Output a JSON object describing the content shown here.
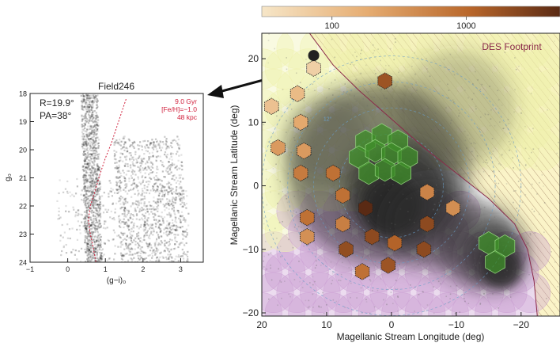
{
  "chart_data": [
    {
      "type": "scatter",
      "title": "Field246",
      "xlabel": "(g−i)₀",
      "ylabel": "g₀",
      "xlim": [
        -1,
        3.6
      ],
      "ylim": [
        24,
        18
      ],
      "x_ticks": [
        "−1",
        "0",
        "1",
        "2",
        "3"
      ],
      "x_tick_values": [
        -1,
        0,
        1,
        2,
        3
      ],
      "y_ticks": [
        "18",
        "19",
        "20",
        "21",
        "22",
        "23",
        "24"
      ],
      "y_tick_values": [
        18,
        19,
        20,
        21,
        22,
        23,
        24
      ],
      "annotations_left": [
        "R=19.9°",
        "PA=38°"
      ],
      "isochrone_labels": [
        "9.0 Gyr",
        "[Fe/H]=−1.0",
        "48 kpc"
      ],
      "isochrone_color": "#d0203c",
      "grid": false
    },
    {
      "type": "scatter",
      "xlabel": "Magellanic Stream Longitude (deg)",
      "ylabel": "Magellanic Stream Latitude (deg)",
      "xlim": [
        20,
        -26
      ],
      "ylim": [
        -20.5,
        24
      ],
      "x_ticks": [
        "20",
        "10",
        "0",
        "−10",
        "−20"
      ],
      "x_tick_values": [
        20,
        10,
        0,
        -10,
        -20
      ],
      "y_ticks": [
        "−20",
        "−10",
        "0",
        "10",
        "20"
      ],
      "y_tick_values": [
        -20,
        -10,
        0,
        10,
        20
      ],
      "footprint_label": "DES Footprint",
      "footprint_color": "#8a2a4a",
      "colorbar": {
        "ticks": [
          "100",
          "1000"
        ],
        "tick_values": [
          100,
          1000
        ],
        "range": [
          30,
          5000
        ],
        "scale": "log",
        "colors": [
          "#f6e6c8",
          "#e6ad72",
          "#b8662a",
          "#5a2a14"
        ]
      },
      "highlight_field": {
        "name": "Field246",
        "x": 12,
        "y": 20.5,
        "color": "#222222"
      },
      "fields": [
        {
          "x": 12,
          "y": 18.5,
          "value": 60
        },
        {
          "x": 18.5,
          "y": 12.5,
          "value": 90
        },
        {
          "x": 14.5,
          "y": 14.5,
          "value": 110
        },
        {
          "x": 1,
          "y": 16.5,
          "value": 1500
        },
        {
          "x": 14,
          "y": 10,
          "value": 180
        },
        {
          "x": 13.5,
          "y": 5.5,
          "value": 260
        },
        {
          "x": 17.5,
          "y": 6,
          "value": 260
        },
        {
          "x": 9,
          "y": 2,
          "value": 700
        },
        {
          "x": 14,
          "y": 2,
          "value": 550
        },
        {
          "x": 7.5,
          "y": -1.5,
          "value": 700
        },
        {
          "x": -5.5,
          "y": -1,
          "value": 450
        },
        {
          "x": 4,
          "y": -3.5,
          "value": 5000
        },
        {
          "x": -9.5,
          "y": -3.5,
          "value": 350
        },
        {
          "x": 13,
          "y": -5,
          "value": 700
        },
        {
          "x": 7.5,
          "y": -6,
          "value": 500
        },
        {
          "x": -5.5,
          "y": -6,
          "value": 2000
        },
        {
          "x": 13,
          "y": -8,
          "value": 330
        },
        {
          "x": 3,
          "y": -8,
          "value": 2000
        },
        {
          "x": -0.5,
          "y": -9,
          "value": 1000
        },
        {
          "x": 7,
          "y": -10,
          "value": 1800
        },
        {
          "x": -5,
          "y": -10,
          "value": 2000
        },
        {
          "x": 4.5,
          "y": -13.5,
          "value": 700
        },
        {
          "x": 0.5,
          "y": -12.5,
          "value": 1500
        }
      ],
      "lmc_fields": [
        {
          "x": 4,
          "y": 7
        },
        {
          "x": 1.5,
          "y": 8
        },
        {
          "x": -1,
          "y": 7
        },
        {
          "x": 5,
          "y": 4.5
        },
        {
          "x": 2.5,
          "y": 5.5
        },
        {
          "x": 0,
          "y": 5
        },
        {
          "x": -2.5,
          "y": 4.5
        },
        {
          "x": 3.5,
          "y": 2
        },
        {
          "x": 1,
          "y": 2.5
        },
        {
          "x": -1.5,
          "y": 2
        }
      ],
      "smc_fields": [
        {
          "x": -15,
          "y": -9
        },
        {
          "x": -17.5,
          "y": -9.5
        },
        {
          "x": -16,
          "y": -12
        }
      ],
      "ring_labels": [
        "16°",
        "12°"
      ]
    }
  ]
}
